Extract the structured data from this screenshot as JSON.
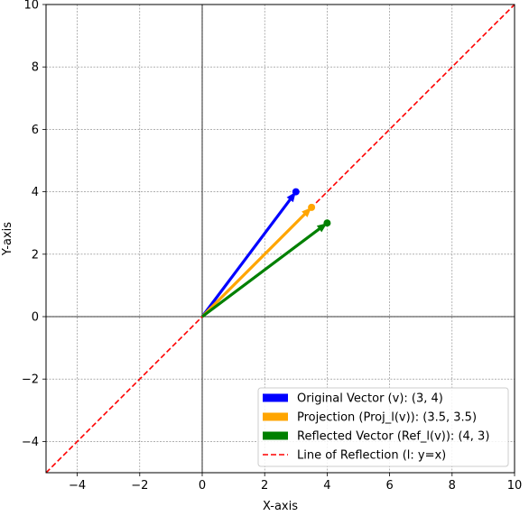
{
  "chart_data": {
    "type": "line",
    "title": "",
    "xlabel": "X-axis",
    "ylabel": "Y-axis",
    "xlim": [
      -5,
      10
    ],
    "ylim": [
      -5,
      10
    ],
    "x_ticks": [
      -4,
      -2,
      0,
      2,
      4,
      6,
      8,
      10
    ],
    "y_ticks": [
      -4,
      -2,
      0,
      2,
      4,
      6,
      8,
      10
    ],
    "grid": true,
    "legend_position": "bottom-right",
    "vectors": [
      {
        "name": "Original Vector (v): (3, 4)",
        "from": [
          0,
          0
        ],
        "to": [
          3,
          4
        ],
        "color": "#0000ff"
      },
      {
        "name": "Projection (Proj_l(v)): (3.5, 3.5)",
        "from": [
          0,
          0
        ],
        "to": [
          3.5,
          3.5
        ],
        "color": "#ffa500"
      },
      {
        "name": "Reflected Vector (Ref_l(v)): (4, 3)",
        "from": [
          0,
          0
        ],
        "to": [
          4,
          3
        ],
        "color": "#008000"
      }
    ],
    "lines": [
      {
        "name": "Line of Reflection (l: y=x)",
        "x": [
          -5,
          10
        ],
        "y": [
          -5,
          10
        ],
        "color": "#ff0000",
        "style": "dashed"
      }
    ]
  }
}
